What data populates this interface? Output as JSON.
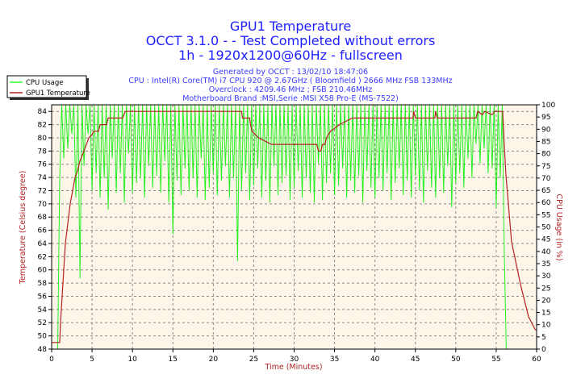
{
  "chart_data": {
    "type": "line",
    "title": "GPU1 Temperature",
    "subtitle_lines": [
      "OCCT 3.1.0 -  - Test Completed without errors",
      "1h - 1920x1200@60Hz - fullscreen"
    ],
    "info_lines": [
      "Generated by OCCT : 13/02/10 18:47:06",
      "CPU : Intel(R) Core(TM) i7 CPU 920 @ 2.67GHz ( Bloomfield ) 2666 MHz FSB 133MHz",
      "Overclock : 4209.46 MHz ; FSB 210.46MHz",
      "Motherboard Brand :MSI,Serie :MSI X58 Pro-E (MS-7522)"
    ],
    "xlabel": "Time (Minutes)",
    "ylabel_left": "Temperature (Celsius degree)",
    "ylabel_right": "CPU Usage (in %)",
    "xlim": [
      0,
      60
    ],
    "ylim_left": [
      48,
      85
    ],
    "ylim_right": [
      0,
      100
    ],
    "x_ticks": [
      0,
      5,
      10,
      15,
      20,
      25,
      30,
      35,
      40,
      45,
      50,
      55,
      60
    ],
    "y_left_ticks": [
      48,
      50,
      52,
      54,
      56,
      58,
      60,
      62,
      64,
      66,
      68,
      70,
      72,
      74,
      76,
      78,
      80,
      82,
      84
    ],
    "y_right_ticks": [
      0,
      5,
      10,
      15,
      20,
      25,
      30,
      35,
      40,
      45,
      50,
      55,
      60,
      65,
      70,
      75,
      80,
      85,
      90,
      95,
      100
    ],
    "grid": true,
    "legend_position": "top-left",
    "colors": {
      "cpu": "#00ee00",
      "gpu": "#b22222",
      "plot_bg": "#fdf6e8",
      "title": "#2020ff"
    },
    "series": [
      {
        "name": "CPU Usage",
        "axis": "right",
        "x_step": 0.25,
        "y_dips": [
          78,
          82,
          88,
          62,
          29,
          75,
          88,
          65,
          72,
          62,
          70,
          57,
          78,
          64,
          72,
          60,
          80,
          64,
          68,
          70,
          62,
          75,
          66,
          71,
          64,
          77,
          60,
          47,
          69,
          63,
          74,
          65,
          70,
          62,
          78,
          61,
          66,
          72,
          63,
          69,
          75,
          62,
          70,
          36,
          65,
          72,
          61,
          67,
          74,
          62,
          69,
          60,
          75,
          63,
          68,
          71,
          61,
          66,
          73,
          62,
          70,
          64,
          60,
          76,
          61,
          68,
          72,
          63,
          67,
          74,
          62,
          69,
          64,
          71,
          60,
          73,
          66,
          62,
          70,
          65,
          72,
          61,
          68,
          74,
          63,
          69,
          62,
          71,
          65,
          60,
          73,
          66,
          62,
          70,
          64,
          75,
          58,
          68,
          72,
          66,
          78,
          70,
          84,
          76,
          82,
          72,
          74,
          58,
          70
        ],
        "pattern": "0 for 0-0.75 min, 70 at 1.0 min, then 100 alternating with y_dips every 0.25 min from 1.25 to 55.75 min, 40 at 56.0 min, 0 from 56.25 to 60 min"
      },
      {
        "name": "GPU1 Temperature",
        "axis": "left",
        "points": [
          [
            0,
            49
          ],
          [
            1.0,
            49
          ],
          [
            1.1,
            52
          ],
          [
            1.3,
            56
          ],
          [
            1.5,
            60
          ],
          [
            1.7,
            64
          ],
          [
            2.0,
            67
          ],
          [
            2.3,
            70
          ],
          [
            2.6,
            72
          ],
          [
            2.9,
            74
          ],
          [
            3.2,
            75
          ],
          [
            3.5,
            76.5
          ],
          [
            4.0,
            78
          ],
          [
            4.3,
            79
          ],
          [
            4.6,
            80
          ],
          [
            5.0,
            80.5
          ],
          [
            5.2,
            81
          ],
          [
            5.8,
            81
          ],
          [
            6.0,
            82
          ],
          [
            6.8,
            82
          ],
          [
            7.0,
            83
          ],
          [
            8.8,
            83
          ],
          [
            9.1,
            84
          ],
          [
            23.5,
            84
          ],
          [
            23.6,
            83
          ],
          [
            24.5,
            83
          ],
          [
            24.6,
            82
          ],
          [
            24.8,
            81
          ],
          [
            25.6,
            80
          ],
          [
            27.2,
            79
          ],
          [
            32.8,
            79
          ],
          [
            33.0,
            78
          ],
          [
            33.3,
            78
          ],
          [
            33.5,
            79
          ],
          [
            33.8,
            79
          ],
          [
            34.0,
            80
          ],
          [
            34.5,
            81
          ],
          [
            35.6,
            82
          ],
          [
            37.2,
            83
          ],
          [
            44.7,
            83
          ],
          [
            44.8,
            84
          ],
          [
            45.0,
            83
          ],
          [
            47.4,
            83
          ],
          [
            47.5,
            84
          ],
          [
            47.7,
            83
          ],
          [
            52.5,
            83
          ],
          [
            52.7,
            84
          ],
          [
            53.3,
            83.5
          ],
          [
            53.6,
            84
          ],
          [
            54.5,
            83.5
          ],
          [
            54.8,
            84
          ],
          [
            55.8,
            84
          ],
          [
            56.0,
            79
          ],
          [
            56.2,
            74.5
          ],
          [
            56.9,
            64.3
          ],
          [
            58.0,
            57.8
          ],
          [
            59.0,
            52.9
          ],
          [
            59.8,
            51
          ],
          [
            60,
            50.8
          ]
        ]
      }
    ]
  }
}
